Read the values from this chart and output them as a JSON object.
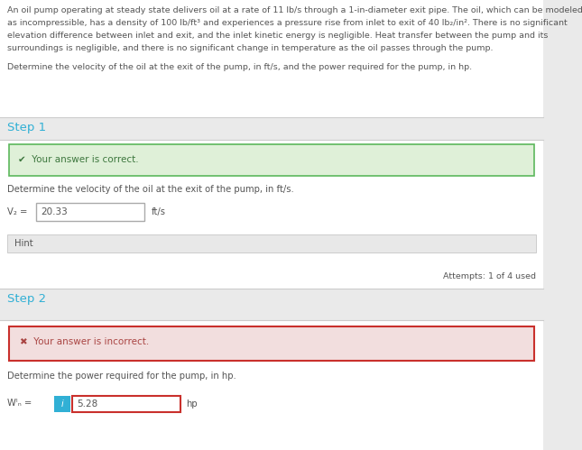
{
  "bg_color": "#eaeaea",
  "white": "#ffffff",
  "problem_text_line1": "An oil pump operating at steady state delivers oil at a rate of 11 lb/s through a 1-in-diameter exit pipe. The oil, which can be modeled",
  "problem_text_line2": "as incompressible, has a density of 100 lb/ft³ and experiences a pressure rise from inlet to exit of 40 lb₂/in². There is no significant",
  "problem_text_line3": "elevation difference between inlet and exit, and the inlet kinetic energy is negligible. Heat transfer between the pump and its",
  "problem_text_line4": "surroundings is negligible, and there is no significant change in temperature as the oil passes through the pump.",
  "determine_text": "Determine the velocity of the oil at the exit of the pump, in ft/s, and the power required for the pump, in hp.",
  "step1_label": "Step 1",
  "step1_correct_msg": "✔  Your answer is correct.",
  "step1_question": "Determine the velocity of the oil at the exit of the pump, in ft/s.",
  "step1_value": "20.33",
  "step1_unit": "ft/s",
  "step1_hint": "Hint",
  "attempts_text": "Attempts: 1 of 4 used",
  "step2_label": "Step 2",
  "step2_incorrect_msg": "✖  Your answer is incorrect.",
  "step2_question": "Determine the power required for the pump, in hp.",
  "step2_value": "5.28",
  "step2_unit": "hp",
  "step1_correct_bg": "#dff0d8",
  "step1_correct_border": "#5cb85c",
  "step1_correct_text": "#3c763d",
  "step2_incorrect_bg": "#f2dede",
  "step2_incorrect_border": "#c9302c",
  "step2_incorrect_text": "#a94442",
  "step_label_color": "#31b0d5",
  "main_text_color": "#555555",
  "hint_bg": "#e8e8e8",
  "hint_border": "#cccccc",
  "input_border": "#aaaaaa",
  "info_icon_bg": "#31b0d5",
  "info_icon_text": "#ffffff",
  "separator_color": "#cccccc",
  "font_size_body": 7.2,
  "font_size_small": 6.8,
  "font_size_step": 9.5,
  "font_size_msg": 7.5,
  "font_size_input": 7.5
}
